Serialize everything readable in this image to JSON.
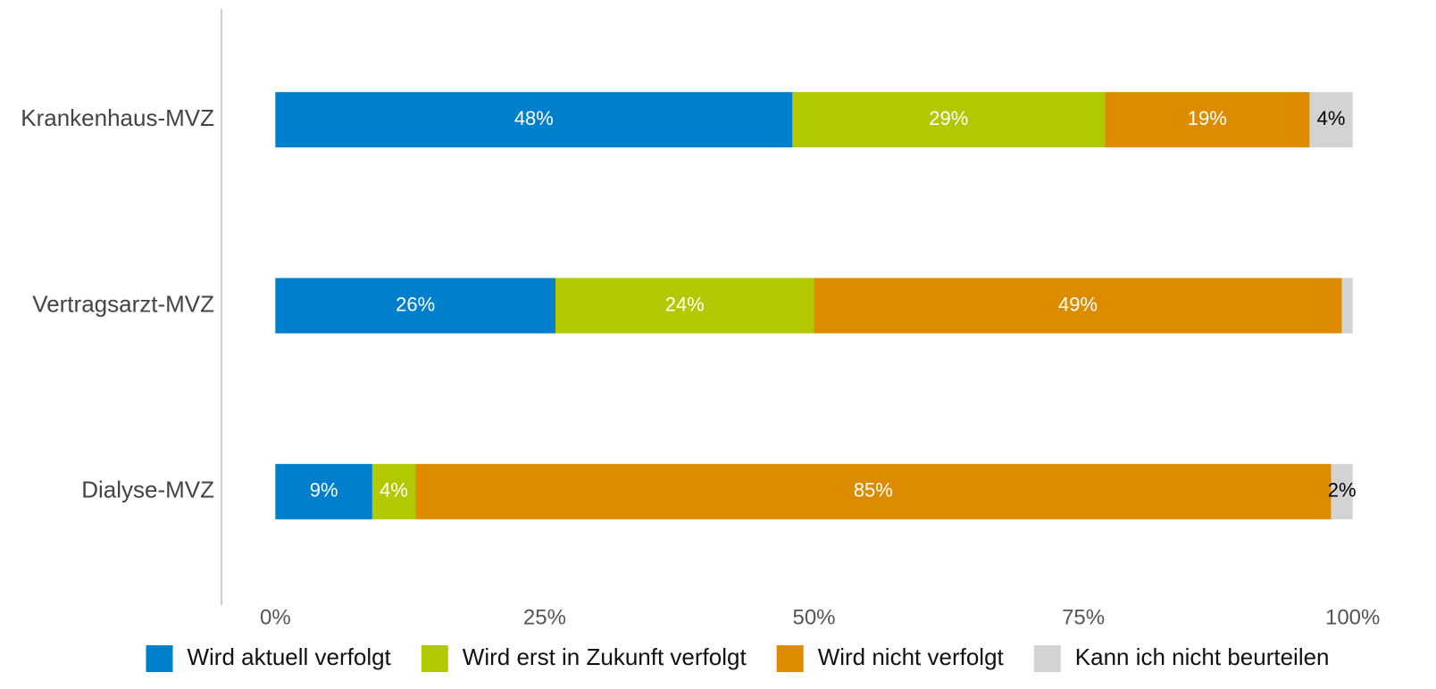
{
  "chart_data": {
    "type": "bar",
    "orientation": "horizontal",
    "stacked": true,
    "categories": [
      "Krankenhaus-MVZ",
      "Vertragsarzt-MVZ",
      "Dialyse-MVZ"
    ],
    "series": [
      {
        "name": "Wird aktuell verfolgt",
        "color": "#0080cc",
        "values": [
          48,
          26,
          9
        ],
        "value_labels": [
          "48%",
          "26%",
          "9%"
        ]
      },
      {
        "name": "Wird erst in Zukunft verfolgt",
        "color": "#b2c800",
        "values": [
          29,
          24,
          4
        ],
        "value_labels": [
          "29%",
          "24%",
          "4%"
        ]
      },
      {
        "name": "Wird nicht verfolgt",
        "color": "#dd8c00",
        "values": [
          19,
          49,
          85
        ],
        "value_labels": [
          "19%",
          "49%",
          "85%"
        ]
      },
      {
        "name": "Kann ich nicht beurteilen",
        "color": "#d3d3d3",
        "values": [
          4,
          1,
          2
        ],
        "value_labels": [
          "4%",
          null,
          "2%"
        ]
      }
    ],
    "xlim": [
      -5,
      105
    ],
    "xticks": [
      {
        "value": 0,
        "label": "0%"
      },
      {
        "value": 25,
        "label": "25%"
      },
      {
        "value": 50,
        "label": "50%"
      },
      {
        "value": 75,
        "label": "75%"
      },
      {
        "value": 100,
        "label": "100%"
      }
    ],
    "grid": false,
    "legend": "bottom"
  }
}
